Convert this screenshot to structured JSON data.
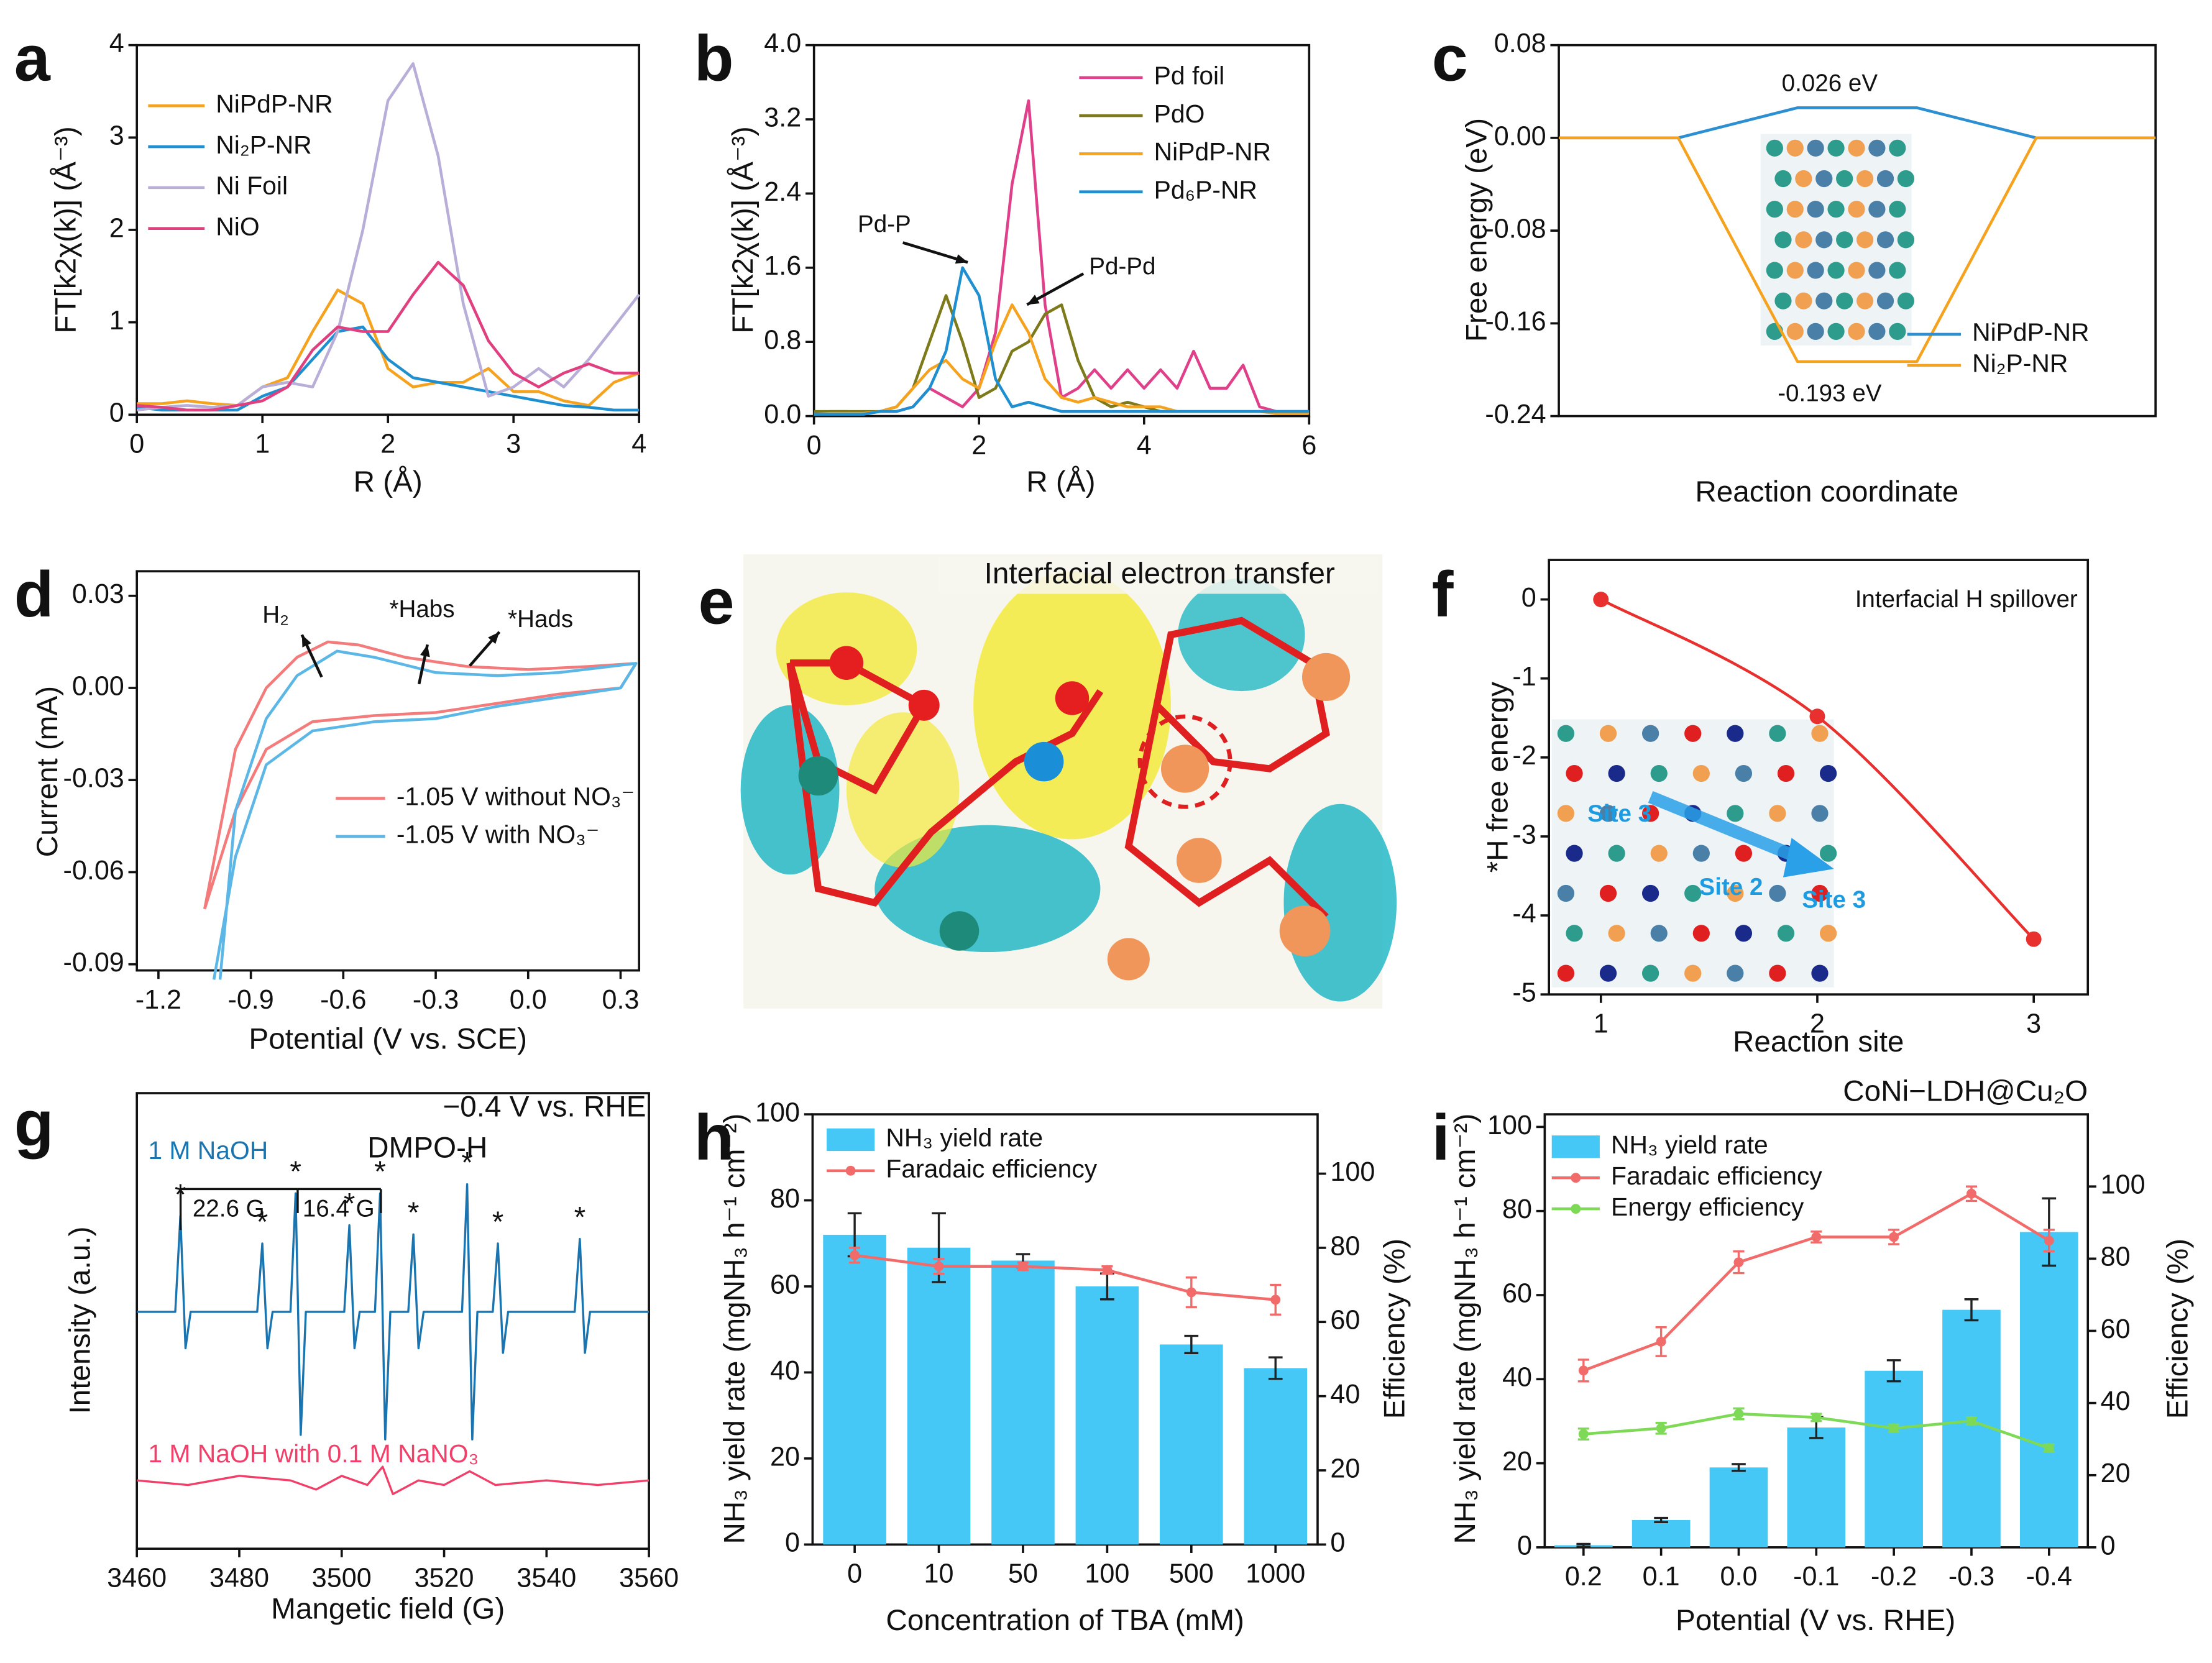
{
  "panel_e": {
    "label": "e",
    "title": "Interfacial electron transfer"
  },
  "chart_data": [
    {
      "type": "line",
      "panel": "a",
      "xlabel": "R (Å)",
      "ylabel": "FT[k2χ(k)] (Å⁻³)",
      "x": [
        0,
        0.2,
        0.4,
        0.6,
        0.8,
        1.0,
        1.2,
        1.4,
        1.6,
        1.8,
        2.0,
        2.2,
        2.4,
        2.6,
        2.8,
        3.0,
        3.2,
        3.4,
        3.6,
        3.8,
        4.0
      ],
      "xlim": [
        0,
        4
      ],
      "xticks": [
        0,
        1,
        2,
        3,
        4
      ],
      "ylim": [
        0,
        4
      ],
      "yticks": [
        0,
        1,
        2,
        3,
        4
      ],
      "legend": "upper left",
      "series": [
        {
          "name": "NiPdP-NR",
          "color": "#f5a21e",
          "values": [
            0.12,
            0.12,
            0.15,
            0.12,
            0.1,
            0.3,
            0.4,
            0.9,
            1.35,
            1.2,
            0.5,
            0.3,
            0.35,
            0.35,
            0.5,
            0.25,
            0.25,
            0.15,
            0.1,
            0.35,
            0.45
          ]
        },
        {
          "name": "Ni₂P-NR",
          "color": "#1f8fd0",
          "values": [
            0.08,
            0.05,
            0.05,
            0.05,
            0.05,
            0.2,
            0.3,
            0.6,
            0.9,
            0.95,
            0.6,
            0.4,
            0.35,
            0.3,
            0.25,
            0.2,
            0.15,
            0.1,
            0.08,
            0.05,
            0.05
          ]
        },
        {
          "name": "Ni Foil",
          "color": "#b8aed8",
          "values": [
            0.05,
            0.08,
            0.1,
            0.08,
            0.1,
            0.3,
            0.35,
            0.3,
            0.9,
            2.0,
            3.4,
            3.8,
            2.8,
            1.2,
            0.2,
            0.3,
            0.5,
            0.3,
            0.6,
            0.95,
            1.3
          ]
        },
        {
          "name": "NiO",
          "color": "#e0407f",
          "values": [
            0.1,
            0.08,
            0.05,
            0.05,
            0.1,
            0.15,
            0.3,
            0.7,
            0.95,
            0.9,
            0.9,
            1.3,
            1.65,
            1.4,
            0.8,
            0.45,
            0.3,
            0.45,
            0.55,
            0.45,
            0.45
          ]
        }
      ]
    },
    {
      "type": "line",
      "panel": "b",
      "xlabel": "R (Å)",
      "ylabel": "FT[k2χ(k)] (Å⁻³)",
      "x": [
        0,
        0.2,
        0.4,
        0.6,
        0.8,
        1.0,
        1.2,
        1.4,
        1.6,
        1.8,
        2.0,
        2.2,
        2.4,
        2.6,
        2.8,
        3.0,
        3.2,
        3.4,
        3.6,
        3.8,
        4.0,
        4.2,
        4.4,
        4.6,
        4.8,
        5.0,
        5.2,
        5.4,
        5.6,
        5.8,
        6.0
      ],
      "xlim": [
        0,
        6
      ],
      "xticks": [
        0,
        2,
        4,
        6
      ],
      "ylim": [
        0,
        4
      ],
      "yticks": [
        {
          "value": 0,
          "label": "0.0"
        },
        0.8,
        1.6,
        2.4,
        3.2,
        {
          "value": 4,
          "label": "4.0"
        }
      ],
      "legend": "upper right",
      "annotations": [
        "Pd-P",
        "Pd-Pd"
      ],
      "series": [
        {
          "name": "Pd foil",
          "color": "#e0408a",
          "values": [
            0.03,
            0.05,
            0.05,
            0.03,
            0.05,
            0.05,
            0.1,
            0.3,
            0.2,
            0.1,
            0.3,
            0.9,
            2.5,
            3.4,
            1.2,
            0.2,
            0.3,
            0.5,
            0.3,
            0.5,
            0.3,
            0.5,
            0.3,
            0.7,
            0.3,
            0.3,
            0.55,
            0.1,
            0.05,
            0.05,
            0.05
          ]
        },
        {
          "name": "PdO",
          "color": "#7d7a1b",
          "values": [
            0.05,
            0.05,
            0.05,
            0.05,
            0.05,
            0.1,
            0.3,
            0.8,
            1.3,
            0.8,
            0.2,
            0.3,
            0.7,
            0.8,
            1.1,
            1.2,
            0.6,
            0.2,
            0.1,
            0.15,
            0.1,
            0.05,
            0.05,
            0.05,
            0.05,
            0.05,
            0.05,
            0.05,
            0.05,
            0.05,
            0.05
          ]
        },
        {
          "name": "NiPdP-NR",
          "color": "#f5a21e",
          "values": [
            0.02,
            0.03,
            0.03,
            0.03,
            0.05,
            0.1,
            0.3,
            0.5,
            0.6,
            0.4,
            0.3,
            0.8,
            1.2,
            0.9,
            0.4,
            0.2,
            0.15,
            0.2,
            0.15,
            0.1,
            0.1,
            0.1,
            0.05,
            0.05,
            0.05,
            0.05,
            0.05,
            0.05,
            0.03,
            0.03,
            0.03
          ]
        },
        {
          "name": "Pd₆P-NR",
          "color": "#1f8fd0",
          "values": [
            0.02,
            0.02,
            0.02,
            0.02,
            0.05,
            0.05,
            0.1,
            0.3,
            0.7,
            1.6,
            1.3,
            0.4,
            0.1,
            0.15,
            0.1,
            0.05,
            0.05,
            0.05,
            0.05,
            0.05,
            0.05,
            0.05,
            0.05,
            0.05,
            0.05,
            0.05,
            0.05,
            0.05,
            0.05,
            0.05,
            0.05
          ]
        }
      ]
    },
    {
      "type": "line",
      "panel": "c",
      "xlabel": "Reaction coordinate",
      "ylabel": "Free energy (eV)",
      "categories": [
        null,
        null,
        null,
        null,
        null,
        null
      ],
      "ylim": [
        -0.24,
        0.08
      ],
      "yticks": [
        0.08,
        {
          "value": 0,
          "label": "0.00"
        },
        -0.08,
        -0.16,
        -0.24
      ],
      "legend": "lower right",
      "annotations": [
        "0.026 eV",
        "-0.193 eV"
      ],
      "series": [
        {
          "name": "NiPdP-NR",
          "color": "#2b8fd1",
          "values": [
            0,
            0,
            0.026,
            0.026,
            0,
            0
          ]
        },
        {
          "name": "Ni₂P-NR",
          "color": "#f5a21e",
          "values": [
            0,
            0,
            -0.193,
            -0.193,
            0,
            0
          ]
        }
      ]
    },
    {
      "type": "line",
      "panel": "d",
      "xlabel": "Potential (V vs. SCE)",
      "ylabel": "Current (mA)",
      "xlim": [
        -1.27,
        0.36
      ],
      "xticks": [
        -1.2,
        -0.9,
        -0.6,
        -0.3,
        {
          "value": 0,
          "label": "0.0"
        },
        0.3
      ],
      "ylim": [
        -0.092,
        0.038
      ],
      "yticks": [
        0.03,
        {
          "value": 0,
          "label": "0.00"
        },
        -0.03,
        -0.06,
        -0.09
      ],
      "legend": "lower center",
      "annotations": [
        "H₂",
        "*Habs",
        "*Hads"
      ],
      "series": [
        {
          "name": "-1.05 V without NO₃⁻",
          "color": "#f47b7b",
          "x": [
            -1.05,
            -0.95,
            -0.85,
            -0.75,
            -0.65,
            -0.55,
            -0.4,
            -0.2,
            0,
            0.2,
            0.35,
            0.3,
            0.1,
            -0.1,
            -0.3,
            -0.5,
            -0.7,
            -0.85,
            -0.95,
            -1.05
          ],
          "values": [
            -0.072,
            -0.02,
            0.0,
            0.01,
            0.015,
            0.014,
            0.01,
            0.007,
            0.006,
            0.007,
            0.008,
            0.0,
            -0.002,
            -0.005,
            -0.008,
            -0.009,
            -0.011,
            -0.02,
            -0.04,
            -0.072
          ]
        },
        {
          "name": "-1.05 V with NO₃⁻",
          "color": "#5cb7e6",
          "x": [
            -1.0,
            -0.95,
            -0.85,
            -0.75,
            -0.62,
            -0.5,
            -0.3,
            -0.1,
            0.1,
            0.35,
            0.3,
            0.1,
            -0.1,
            -0.3,
            -0.5,
            -0.7,
            -0.85,
            -0.95,
            -1.02
          ],
          "values": [
            -0.095,
            -0.04,
            -0.01,
            0.004,
            0.012,
            0.01,
            0.005,
            0.004,
            0.005,
            0.008,
            0.0,
            -0.003,
            -0.006,
            -0.01,
            -0.011,
            -0.014,
            -0.025,
            -0.055,
            -0.095
          ]
        }
      ]
    },
    {
      "type": "line",
      "panel": "f",
      "xlabel": "Reaction site",
      "ylabel": "*H free energy",
      "x": [
        1,
        2,
        3
      ],
      "xlim": [
        0.76,
        3.25
      ],
      "xticks": [
        1,
        2,
        3
      ],
      "ylim": [
        -5,
        0.5
      ],
      "yticks": [
        0,
        -1,
        -2,
        -3,
        -4,
        -5
      ],
      "markers": true,
      "smooth": true,
      "annotations": [
        "Interfacial H spillover"
      ],
      "inset_labels": [
        "Site 3",
        "Site 2",
        "Site 3"
      ],
      "series": [
        {
          "color": "#e8312f",
          "values": [
            0,
            -1.48,
            -4.3
          ]
        }
      ]
    },
    {
      "type": "line",
      "panel": "g",
      "title": "−0.4 V vs. RHE",
      "xlabel": "Mangetic field (G)",
      "ylabel": "Intensity (a.u.)",
      "xlim": [
        3460,
        3560
      ],
      "xticks": [
        3460,
        3480,
        3500,
        3520,
        3540,
        3560
      ],
      "ylim": [
        0,
        100
      ],
      "annotations": [
        "DMPO-H",
        "22.6 G",
        "16.4 G"
      ],
      "peak_marker": "*",
      "series": [
        {
          "name": "1 M NaOH",
          "color": "#1a74b0",
          "x": [
            3460,
            3467.5,
            3468.5,
            3469.5,
            3470.5,
            3483.5,
            3484.5,
            3485.5,
            3486.5,
            3490,
            3491,
            3492,
            3493,
            3500.5,
            3501.5,
            3502.5,
            3503.5,
            3506.5,
            3507.5,
            3508.5,
            3509.5,
            3513,
            3514,
            3515,
            3516,
            3523.5,
            3524.5,
            3525.5,
            3526.5,
            3529.5,
            3530.5,
            3531.5,
            3532.5,
            3545.5,
            3546.5,
            3547.5,
            3548.5,
            3560
          ],
          "values": [
            52,
            52,
            73,
            44,
            52,
            52,
            67,
            44,
            52,
            52,
            78,
            25,
            52,
            52,
            71,
            44,
            52,
            52,
            78,
            24,
            52,
            52,
            69,
            44,
            52,
            52,
            80,
            24,
            52,
            52,
            67,
            43,
            52,
            52,
            68,
            43,
            52,
            52
          ]
        },
        {
          "name": "1 M NaOH with 0.1 M NaNO₃",
          "color": "#f0406a",
          "x": [
            3460,
            3470,
            3480,
            3490,
            3495,
            3500,
            3505,
            3508,
            3510,
            3515,
            3520,
            3525,
            3530,
            3540,
            3550,
            3560
          ],
          "values": [
            15,
            14,
            16,
            15,
            13,
            16,
            14,
            18,
            12,
            15,
            14,
            17,
            14,
            15,
            14,
            15
          ]
        }
      ]
    },
    {
      "type": "bar",
      "panel": "h",
      "xlabel": "Concentration of TBA (mM)",
      "ylabel": "NH₃ yield rate (mgNH₃ h⁻¹ cm⁻²)",
      "y2label": "Efficiency (%)",
      "categories": [
        "0",
        "10",
        "50",
        "100",
        "500",
        "1000"
      ],
      "ylim": [
        0,
        100
      ],
      "yticks": [
        0,
        20,
        40,
        60,
        80,
        100
      ],
      "y2lim": [
        0,
        116
      ],
      "y2ticks": [
        0,
        20,
        40,
        60,
        80,
        100
      ],
      "legend": "upper left",
      "series": [
        {
          "name": "NH₃ yield rate",
          "color": "#45c8f5",
          "values": [
            72,
            69,
            66,
            60,
            46.5,
            41
          ],
          "errors": [
            5,
            8,
            1.5,
            3,
            2,
            2.5
          ]
        },
        {
          "name": "Faradaic efficiency",
          "type": "line",
          "axis": "y2",
          "color": "#f26b6b",
          "values": [
            78,
            75,
            75,
            74,
            68,
            66
          ],
          "errors": [
            2,
            2,
            1,
            1,
            4,
            4
          ]
        }
      ]
    },
    {
      "type": "bar",
      "panel": "i",
      "title": "CoNi−LDH@Cu₂O",
      "xlabel": "Potential (V vs. RHE)",
      "ylabel": "NH₃ yield rate (mgNH₃ h⁻¹ cm⁻²)",
      "y2label": "Efficiency (%)",
      "categories": [
        "0.2",
        "0.1",
        "0.0",
        "-0.1",
        "-0.2",
        "-0.3",
        "-0.4"
      ],
      "ylim": [
        0,
        103
      ],
      "yticks": [
        0,
        20,
        40,
        60,
        80,
        100
      ],
      "y2lim": [
        0,
        120
      ],
      "y2ticks": [
        0,
        20,
        40,
        60,
        80,
        100
      ],
      "legend": "upper left",
      "series": [
        {
          "name": "NH₃ yield rate",
          "color": "#45c8f5",
          "values": [
            0.5,
            6.5,
            19,
            28.5,
            42,
            56.5,
            75
          ],
          "errors": [
            0.3,
            0.5,
            0.8,
            2.5,
            2.5,
            2.5,
            8
          ]
        },
        {
          "name": "Faradaic efficiency",
          "type": "line",
          "axis": "y2",
          "color": "#f26b6b",
          "values": [
            49,
            57,
            79,
            86,
            86,
            98,
            85
          ],
          "errors": [
            3,
            4,
            3,
            1.5,
            2,
            2,
            3
          ]
        },
        {
          "name": "Energy efficiency",
          "type": "line",
          "axis": "y2",
          "color": "#7ed957",
          "values": [
            31.4,
            33,
            37,
            36,
            33,
            35,
            27.5
          ],
          "errors": [
            1.5,
            1.5,
            1.5,
            1,
            1,
            1,
            1
          ]
        }
      ]
    }
  ]
}
